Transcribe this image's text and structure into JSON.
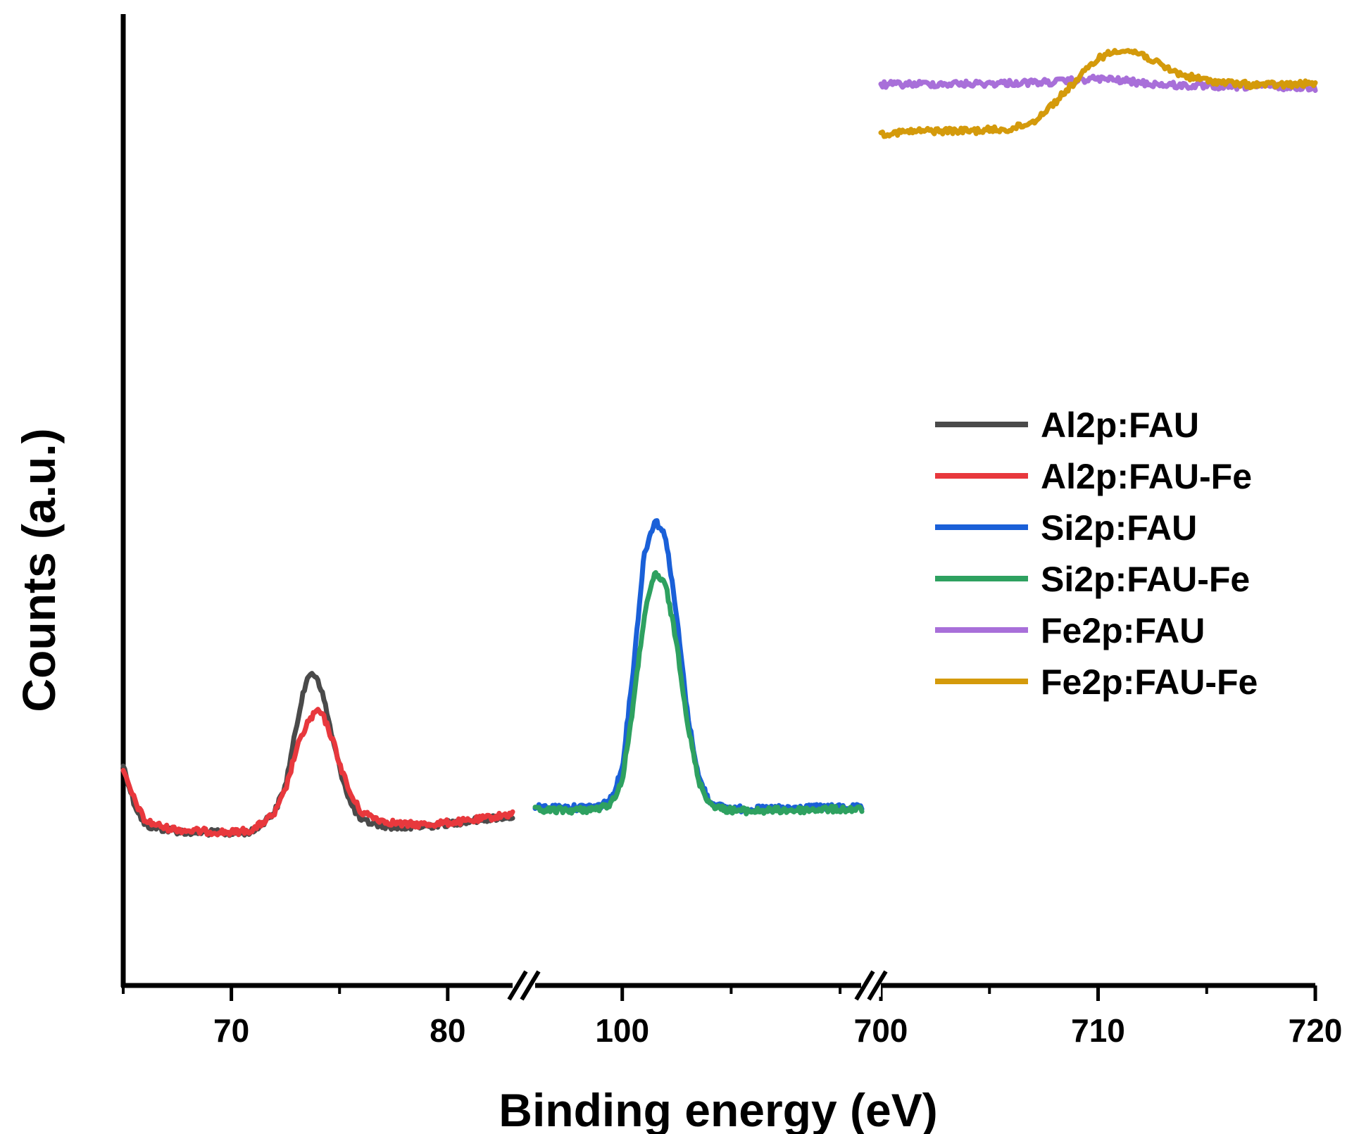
{
  "chart_data": {
    "type": "line",
    "title": "",
    "xlabel": "Binding energy (eV)",
    "ylabel": "Counts (a.u.)",
    "grid": false,
    "legend_position": "center-right",
    "axis_breaks": true,
    "segments": [
      {
        "xlim": [
          65,
          83
        ],
        "ticks": [
          70,
          80
        ],
        "minor_ticks": [
          65,
          75
        ],
        "tick_labels": [
          "70",
          "80"
        ]
      },
      {
        "xlim": [
          96,
          111
        ],
        "ticks": [
          100
        ],
        "minor_ticks": [
          105,
          110
        ],
        "tick_labels": [
          "100"
        ]
      },
      {
        "xlim": [
          700,
          720
        ],
        "ticks": [
          700,
          710,
          720
        ],
        "minor_ticks": [
          705,
          715
        ],
        "tick_labels": [
          "700",
          "710",
          "720"
        ]
      }
    ],
    "ylim": [
      0,
      1.0
    ],
    "series": [
      {
        "name": "Al2p:FAU",
        "color": "#4a4a4a",
        "segment": 0,
        "x": [
          65,
          65.5,
          66,
          67,
          68,
          69,
          70,
          71,
          72,
          72.5,
          73,
          73.3,
          73.7,
          74,
          74.3,
          74.7,
          75,
          75.5,
          76,
          77,
          78,
          79,
          80,
          81,
          82,
          83
        ],
        "y": [
          0.193,
          0.15,
          0.125,
          0.12,
          0.117,
          0.117,
          0.116,
          0.118,
          0.14,
          0.17,
          0.235,
          0.275,
          0.298,
          0.29,
          0.265,
          0.22,
          0.19,
          0.15,
          0.13,
          0.125,
          0.122,
          0.124,
          0.127,
          0.13,
          0.133,
          0.135
        ]
      },
      {
        "name": "Al2p:FAU-Fe",
        "color": "#e8383d",
        "segment": 0,
        "x": [
          65,
          65.5,
          66,
          67,
          68,
          69,
          70,
          71,
          72,
          72.5,
          73,
          73.5,
          74,
          74.3,
          74.7,
          75,
          75.5,
          76,
          77,
          78,
          79,
          80,
          81,
          82,
          83
        ],
        "y": [
          0.185,
          0.155,
          0.13,
          0.122,
          0.119,
          0.118,
          0.117,
          0.12,
          0.138,
          0.165,
          0.21,
          0.24,
          0.255,
          0.245,
          0.22,
          0.195,
          0.16,
          0.14,
          0.13,
          0.126,
          0.126,
          0.128,
          0.13,
          0.134,
          0.138
        ]
      },
      {
        "name": "Si2p:FAU",
        "color": "#1a60d8",
        "segment": 1,
        "x": [
          96,
          97,
          98,
          99,
          99.5,
          100,
          100.5,
          101,
          101.5,
          102,
          102.5,
          103,
          103.5,
          104,
          104.5,
          105,
          106,
          107,
          108,
          109,
          110,
          111
        ],
        "y": [
          0.145,
          0.145,
          0.145,
          0.147,
          0.155,
          0.19,
          0.3,
          0.43,
          0.47,
          0.45,
          0.36,
          0.25,
          0.18,
          0.152,
          0.146,
          0.144,
          0.143,
          0.144,
          0.144,
          0.145,
          0.145,
          0.145
        ]
      },
      {
        "name": "Si2p:FAU-Fe",
        "color": "#2ea160",
        "segment": 1,
        "x": [
          96,
          97,
          98,
          99,
          99.5,
          100,
          100.5,
          101,
          101.5,
          102,
          102.5,
          103,
          103.5,
          104,
          104.5,
          105,
          106,
          107,
          108,
          109,
          110,
          111
        ],
        "y": [
          0.142,
          0.142,
          0.142,
          0.144,
          0.15,
          0.175,
          0.26,
          0.36,
          0.41,
          0.395,
          0.33,
          0.24,
          0.175,
          0.15,
          0.144,
          0.142,
          0.141,
          0.142,
          0.142,
          0.143,
          0.143,
          0.143
        ]
      },
      {
        "name": "Fe2p:FAU",
        "color": "#a86fd9",
        "segment": 2,
        "x": [
          700,
          702,
          704,
          706,
          708,
          709,
          710,
          711,
          712,
          713,
          714,
          715,
          716,
          718,
          720
        ],
        "y": [
          0.96,
          0.961,
          0.961,
          0.962,
          0.963,
          0.965,
          0.967,
          0.965,
          0.962,
          0.96,
          0.959,
          0.958,
          0.958,
          0.958,
          0.957
        ]
      },
      {
        "name": "Fe2p:FAU-Fe",
        "color": "#d49a0b",
        "segment": 2,
        "x": [
          700,
          702,
          704,
          706,
          707,
          708,
          709,
          710,
          711,
          712,
          713,
          714,
          715,
          716,
          717,
          718,
          719,
          720
        ],
        "y": [
          0.905,
          0.908,
          0.908,
          0.91,
          0.918,
          0.94,
          0.965,
          0.99,
          1.0,
          0.995,
          0.98,
          0.97,
          0.965,
          0.962,
          0.96,
          0.96,
          0.96,
          0.962
        ]
      }
    ]
  }
}
